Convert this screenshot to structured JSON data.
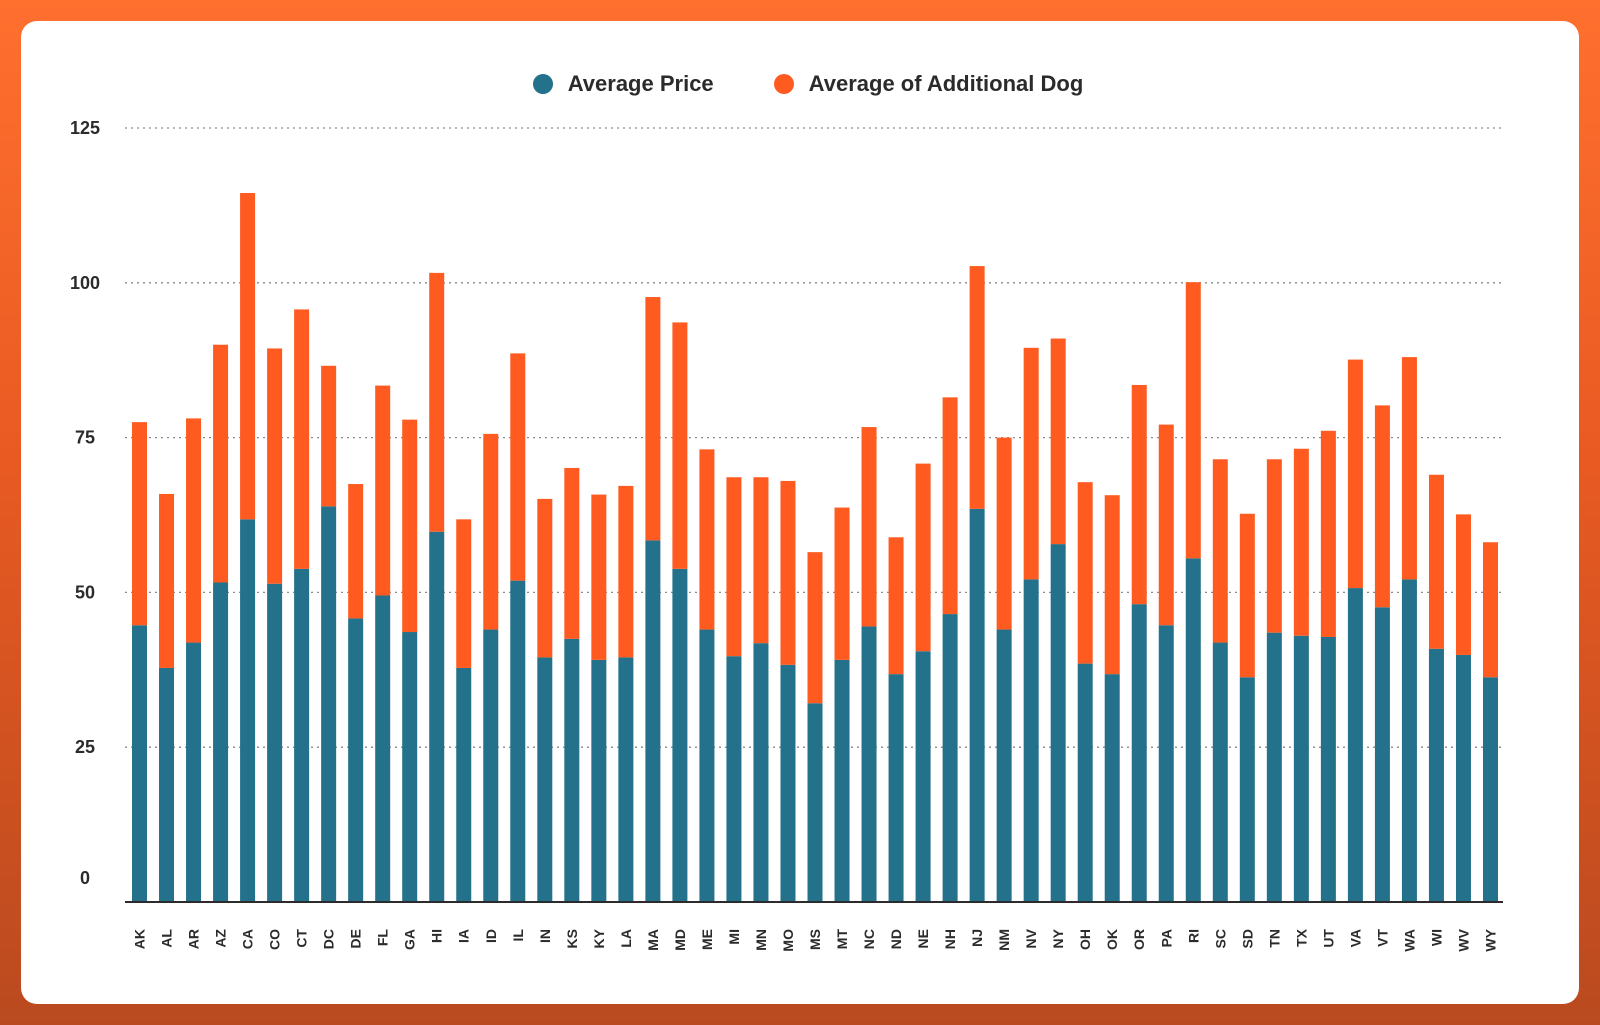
{
  "colors": {
    "average_price": "#23718a",
    "average_additional_dog": "#ff5a1f",
    "frame": "#f26a2c"
  },
  "legend": [
    {
      "label": "Average Price",
      "color": "#23718a"
    },
    {
      "label": "Average of Additional Dog",
      "color": "#ff5a1f"
    }
  ],
  "chart_data": {
    "type": "bar",
    "stacked": true,
    "title": "",
    "xlabel": "",
    "ylabel": "",
    "ylim": [
      0,
      125
    ],
    "yticks": [
      0,
      25,
      50,
      75,
      100,
      125
    ],
    "grid": "horizontal dotted",
    "legend_position": "top-center",
    "categories": [
      "AK",
      "AL",
      "AR",
      "AZ",
      "CA",
      "CO",
      "CT",
      "DC",
      "DE",
      "FL",
      "GA",
      "HI",
      "IA",
      "ID",
      "IL",
      "IN",
      "KS",
      "KY",
      "LA",
      "MA",
      "MD",
      "ME",
      "MI",
      "MN",
      "MO",
      "MS",
      "MT",
      "NC",
      "ND",
      "NE",
      "NH",
      "NJ",
      "NM",
      "NV",
      "NY",
      "OH",
      "OK",
      "OR",
      "PA",
      "RI",
      "SC",
      "SD",
      "TN",
      "TX",
      "UT",
      "VA",
      "VT",
      "WA",
      "WI",
      "WV",
      "WY"
    ],
    "series": [
      {
        "name": "Average Price",
        "values": [
          44.7,
          37.8,
          41.9,
          51.6,
          61.8,
          51.4,
          53.8,
          63.9,
          45.8,
          49.5,
          43.6,
          59.8,
          37.8,
          44.0,
          51.9,
          39.5,
          42.5,
          39.1,
          39.5,
          58.4,
          53.8,
          44.0,
          39.7,
          41.8,
          38.3,
          32.1,
          39.1,
          44.5,
          36.8,
          40.5,
          46.5,
          63.5,
          44.0,
          52.1,
          57.8,
          38.5,
          36.8,
          48.1,
          44.7,
          55.5,
          41.9,
          36.3,
          43.5,
          43.0,
          42.8,
          50.7,
          47.6,
          52.1,
          40.9,
          39.9,
          36.3
        ]
      },
      {
        "name": "Average of Additional Dog",
        "values": [
          32.8,
          28.1,
          36.2,
          38.4,
          52.7,
          38.0,
          41.9,
          22.7,
          21.7,
          33.9,
          34.3,
          41.8,
          24.0,
          31.6,
          36.7,
          25.6,
          27.6,
          26.7,
          27.7,
          39.3,
          39.8,
          29.1,
          28.9,
          26.8,
          29.7,
          24.4,
          24.6,
          32.2,
          22.1,
          30.3,
          35.0,
          39.2,
          31.0,
          37.4,
          33.2,
          29.3,
          28.9,
          35.4,
          32.4,
          44.6,
          29.6,
          26.4,
          28.0,
          30.2,
          33.3,
          36.9,
          32.6,
          35.9,
          28.1,
          22.7,
          21.8
        ]
      }
    ]
  }
}
